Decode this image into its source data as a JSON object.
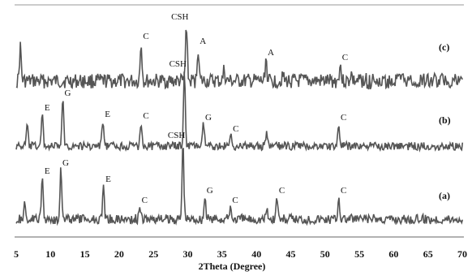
{
  "chart_data": {
    "type": "line",
    "title": "",
    "xlabel": "2Theta (Degree)",
    "ylabel": "",
    "xlim": [
      5,
      70
    ],
    "x_ticks": [
      "5",
      "10",
      "15",
      "20",
      "25",
      "30",
      "35",
      "40",
      "45",
      "50",
      "55",
      "60",
      "65",
      "70"
    ],
    "grid": false,
    "legend": "none",
    "line_color": "#555555",
    "frame_color": "#999999",
    "series": [
      {
        "name": "(c)",
        "peaks": [
          {
            "x": 5.6,
            "h": 42,
            "label": ""
          },
          {
            "x": 23.2,
            "h": 48,
            "label": "C"
          },
          {
            "x": 29.8,
            "h": 72,
            "label": "CSH"
          },
          {
            "x": 31.5,
            "h": 42,
            "label": "A"
          },
          {
            "x": 35.3,
            "h": 14,
            "label": ""
          },
          {
            "x": 41.4,
            "h": 28,
            "label": "A"
          },
          {
            "x": 43.8,
            "h": 8,
            "label": ""
          },
          {
            "x": 52.2,
            "h": 22,
            "label": "C"
          },
          {
            "x": 53.8,
            "h": 10,
            "label": ""
          }
        ]
      },
      {
        "name": "(b)",
        "peaks": [
          {
            "x": 6.6,
            "h": 26,
            "label": ""
          },
          {
            "x": 8.8,
            "h": 40,
            "label": "E"
          },
          {
            "x": 11.8,
            "h": 58,
            "label": "G"
          },
          {
            "x": 17.6,
            "h": 32,
            "label": "E"
          },
          {
            "x": 23.2,
            "h": 30,
            "label": "C"
          },
          {
            "x": 29.5,
            "h": 94,
            "label": "CSH"
          },
          {
            "x": 32.3,
            "h": 28,
            "label": "G"
          },
          {
            "x": 36.3,
            "h": 14,
            "label": "C"
          },
          {
            "x": 41.5,
            "h": 14,
            "label": ""
          },
          {
            "x": 52.0,
            "h": 28,
            "label": "C"
          }
        ]
      },
      {
        "name": "(a)",
        "peaks": [
          {
            "x": 6.2,
            "h": 16,
            "label": ""
          },
          {
            "x": 8.8,
            "h": 52,
            "label": "E"
          },
          {
            "x": 11.5,
            "h": 62,
            "label": "G"
          },
          {
            "x": 17.7,
            "h": 42,
            "label": "E"
          },
          {
            "x": 23.0,
            "h": 16,
            "label": "C"
          },
          {
            "x": 29.3,
            "h": 96,
            "label": "CSH"
          },
          {
            "x": 32.5,
            "h": 28,
            "label": "G"
          },
          {
            "x": 36.2,
            "h": 16,
            "label": "C"
          },
          {
            "x": 41.5,
            "h": 12,
            "label": ""
          },
          {
            "x": 43.0,
            "h": 28,
            "label": "C"
          },
          {
            "x": 52.0,
            "h": 28,
            "label": "C"
          }
        ]
      }
    ]
  }
}
